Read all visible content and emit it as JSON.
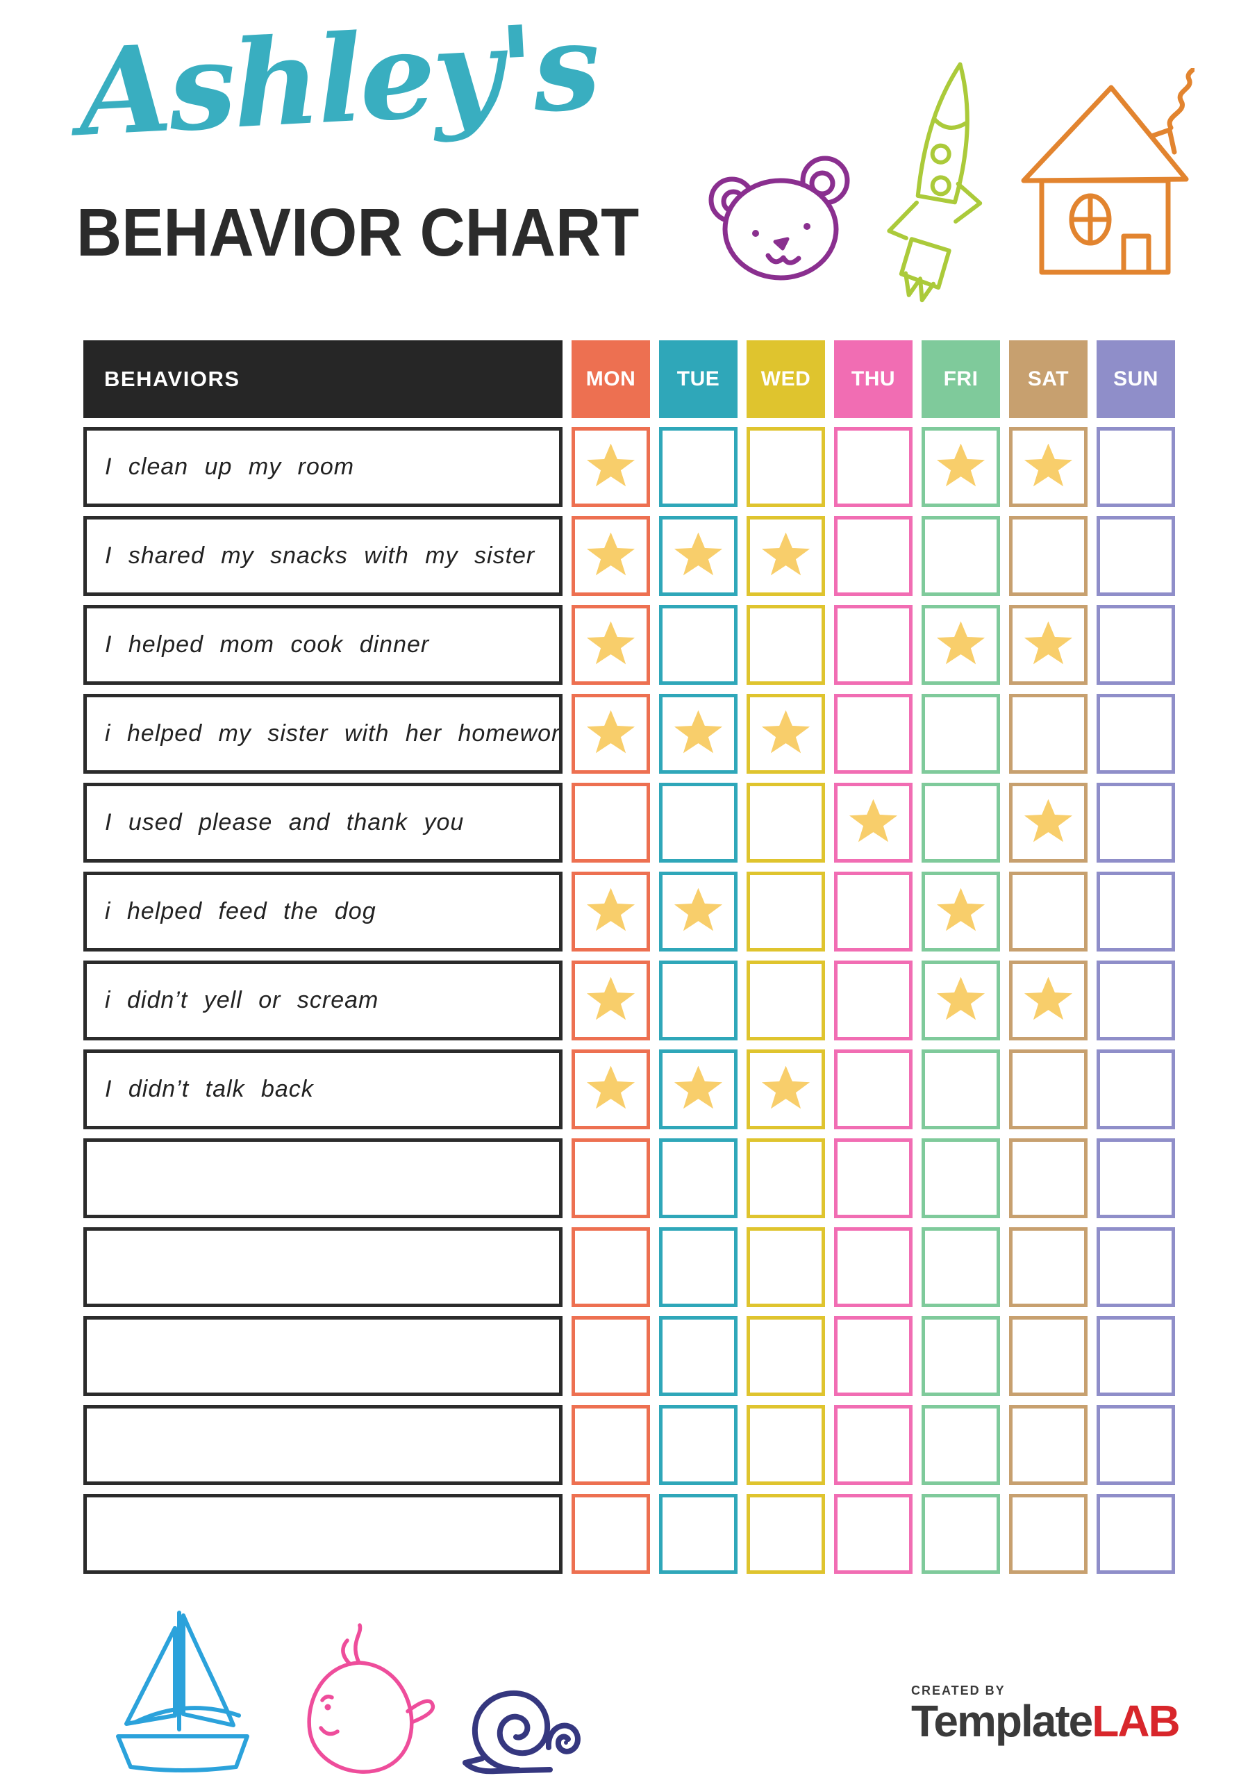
{
  "page": {
    "title_script": "Ashley's",
    "title_main": "BEHAVIOR CHART"
  },
  "colors": {
    "title_script": "#39AEC0",
    "title_main": "#2B2B2B",
    "header_bg": "#262626",
    "row_border": "#2B2B2B",
    "star": "#F8CE6B",
    "brand_gray": "#3A3A3A",
    "brand_red": "#D8262B"
  },
  "icon_colors": {
    "bear-icon": "#8A2F8F",
    "rocket-icon": "#ABCA3A",
    "house-icon": "#E2842F",
    "sailboat-icon": "#2BA2DB",
    "whale-icon": "#EE4D9B",
    "snail-icon": "#35377F"
  },
  "table": {
    "behaviors_header": "BEHAVIORS",
    "days": [
      {
        "label": "MON",
        "color": "#ED7051"
      },
      {
        "label": "TUE",
        "color": "#2FA7B9"
      },
      {
        "label": "WED",
        "color": "#DFC42E"
      },
      {
        "label": "THU",
        "color": "#F16DB3"
      },
      {
        "label": "FRI",
        "color": "#7FCA9B"
      },
      {
        "label": "SAT",
        "color": "#C7A06F"
      },
      {
        "label": "SUN",
        "color": "#8F8EC9"
      }
    ],
    "rows": [
      {
        "behavior": "I clean up my room",
        "stars": [
          "MON",
          "FRI",
          "SAT"
        ]
      },
      {
        "behavior": "I shared my snacks with my sister",
        "stars": [
          "MON",
          "TUE",
          "WED"
        ]
      },
      {
        "behavior": "I helped mom cook dinner",
        "stars": [
          "MON",
          "FRI",
          "SAT"
        ]
      },
      {
        "behavior": "i helped my sister with her homework",
        "stars": [
          "MON",
          "TUE",
          "WED"
        ]
      },
      {
        "behavior": "I used please and thank you",
        "stars": [
          "THU",
          "SAT"
        ]
      },
      {
        "behavior": "i helped feed the dog",
        "stars": [
          "MON",
          "TUE",
          "FRI"
        ]
      },
      {
        "behavior": "i didn’t yell or scream",
        "stars": [
          "MON",
          "FRI",
          "SAT"
        ]
      },
      {
        "behavior": "I didn’t talk back",
        "stars": [
          "MON",
          "TUE",
          "WED"
        ]
      },
      {
        "behavior": "",
        "stars": []
      },
      {
        "behavior": "",
        "stars": []
      },
      {
        "behavior": "",
        "stars": []
      },
      {
        "behavior": "",
        "stars": []
      },
      {
        "behavior": "",
        "stars": []
      }
    ]
  },
  "footer": {
    "created_by": "CREATED BY",
    "brand_name": "Template",
    "brand_suffix": "LAB"
  }
}
